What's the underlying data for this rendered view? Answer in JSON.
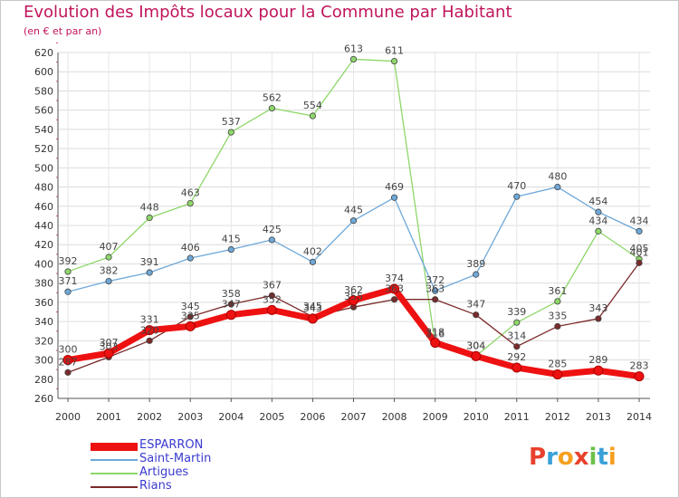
{
  "title": "Evolution des Impôts locaux pour la Commune par Habitant",
  "subtitle": "(en € et par an)",
  "logo": {
    "text": "Proxiti",
    "colors": [
      "#e8412c",
      "#3aa0d8",
      "#f6a020",
      "#e8412c",
      "#6cc04a",
      "#3aa0d8",
      "#f6a020"
    ]
  },
  "chart_data": {
    "type": "line",
    "title": "Evolution des Impôts locaux pour la Commune par Habitant",
    "subtitle": "(en € et par an)",
    "x": [
      "2000",
      "2001",
      "2002",
      "2003",
      "2004",
      "2005",
      "2006",
      "2007",
      "2008",
      "2009",
      "2010",
      "2011",
      "2012",
      "2013",
      "2014"
    ],
    "ylim": [
      260,
      620
    ],
    "yticks": [
      260,
      280,
      300,
      320,
      340,
      360,
      380,
      400,
      420,
      440,
      460,
      480,
      500,
      520,
      540,
      560,
      580,
      600,
      620
    ],
    "grid": true,
    "legend_position": "bottom-left",
    "series": [
      {
        "name": "Artigues",
        "color": "#8ed66a",
        "values": [
          392,
          407,
          448,
          463,
          537,
          562,
          554,
          613,
          611,
          316,
          304,
          339,
          361,
          434,
          405
        ]
      },
      {
        "name": "Saint-Martin",
        "color": "#6ea8d8",
        "values": [
          371,
          382,
          391,
          406,
          415,
          425,
          402,
          445,
          469,
          372,
          389,
          470,
          480,
          454,
          434
        ]
      },
      {
        "name": "Rians",
        "color": "#7a2a2a",
        "values": [
          287,
          303,
          320,
          345,
          358,
          367,
          345,
          355,
          363,
          363,
          347,
          314,
          335,
          343,
          401
        ]
      },
      {
        "name": "ESPARRON",
        "color": "#ee1111",
        "values": [
          300,
          307,
          331,
          335,
          347,
          352,
          343,
          362,
          374,
          318,
          304,
          292,
          285,
          289,
          283
        ]
      }
    ],
    "legend": [
      "ESPARRON",
      "Saint-Martin",
      "Artigues",
      "Rians"
    ]
  }
}
